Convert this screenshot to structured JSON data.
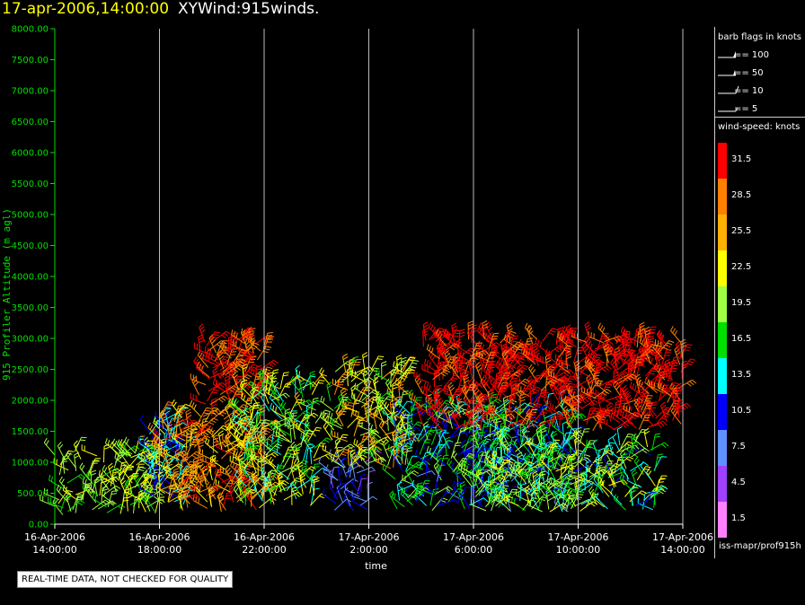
{
  "header": {
    "date": "17-apr-2006,14:00:00",
    "name": "XYWind:915winds."
  },
  "legend": {
    "barb_title": "barb flags in knots",
    "barbs": [
      {
        "label": "== 100",
        "icon": "pennant-barb-icon"
      },
      {
        "label": "== 50",
        "icon": "pennant-barb-icon"
      },
      {
        "label": "== 10",
        "icon": "full-barb-icon"
      },
      {
        "label": "== 5",
        "icon": "half-barb-icon"
      }
    ],
    "speed_title": "wind-speed: knots"
  },
  "footer": {
    "source": "iss-mapr/prof915h",
    "notice": "REAL-TIME DATA, NOT CHECKED FOR QUALITY"
  },
  "chart_data": {
    "type": "scatter",
    "title": "",
    "xlabel": "time",
    "ylabel": "915 Profiler Altitude (m agl)",
    "ylim": [
      0,
      8000
    ],
    "yticks": [
      "0.00",
      "500.00",
      "1000.00",
      "1500.00",
      "2000.00",
      "2500.00",
      "3000.00",
      "3500.00",
      "4000.00",
      "4500.00",
      "5000.00",
      "5500.00",
      "6000.00",
      "6500.00",
      "7000.00",
      "7500.00",
      "8000.00"
    ],
    "xticks": [
      [
        "16-Apr-2006",
        "14:00:00"
      ],
      [
        "16-Apr-2006",
        "18:00:00"
      ],
      [
        "16-Apr-2006",
        "22:00:00"
      ],
      [
        "17-Apr-2006",
        "2:00:00"
      ],
      [
        "17-Apr-2006",
        "6:00:00"
      ],
      [
        "17-Apr-2006",
        "10:00:00"
      ],
      [
        "17-Apr-2006",
        "14:00:00"
      ]
    ],
    "xlim_hours": [
      0,
      24
    ],
    "grid": "vertical",
    "colorbar": {
      "labels": [
        "31.5",
        "28.5",
        "25.5",
        "22.5",
        "19.5",
        "16.5",
        "13.5",
        "10.5",
        "7.5",
        "4.5",
        "1.5"
      ],
      "colors": [
        "#ff0000",
        "#ff8000",
        "#ffb000",
        "#ffff00",
        "#a0ff40",
        "#00e000",
        "#00ffff",
        "#0000ff",
        "#6090ff",
        "#a040ff",
        "#ff80ff"
      ]
    },
    "series": [
      {
        "hours": [
          0,
          4
        ],
        "alt": [
          150,
          1200
        ],
        "speed": [
          17,
          23
        ]
      },
      {
        "hours": [
          3.6,
          5
        ],
        "alt": [
          300,
          1700
        ],
        "speed": [
          9,
          15
        ]
      },
      {
        "hours": [
          4,
          8
        ],
        "alt": [
          200,
          1800
        ],
        "speed": [
          22,
          31
        ]
      },
      {
        "hours": [
          5.5,
          8
        ],
        "alt": [
          1900,
          3000
        ],
        "speed": [
          28,
          32
        ]
      },
      {
        "hours": [
          7,
          10
        ],
        "alt": [
          300,
          2300
        ],
        "speed": [
          13,
          25
        ]
      },
      {
        "hours": [
          10.5,
          12
        ],
        "alt": [
          200,
          1000
        ],
        "speed": [
          5,
          11
        ]
      },
      {
        "hours": [
          10.5,
          13.5
        ],
        "alt": [
          900,
          2500
        ],
        "speed": [
          17,
          28
        ]
      },
      {
        "hours": [
          13,
          20
        ],
        "alt": [
          200,
          1900
        ],
        "speed": [
          8,
          21
        ]
      },
      {
        "hours": [
          14,
          24
        ],
        "alt": [
          1500,
          3000
        ],
        "speed": [
          29,
          33
        ]
      },
      {
        "hours": [
          16,
          23
        ],
        "alt": [
          200,
          1300
        ],
        "speed": [
          11,
          24
        ]
      }
    ]
  }
}
